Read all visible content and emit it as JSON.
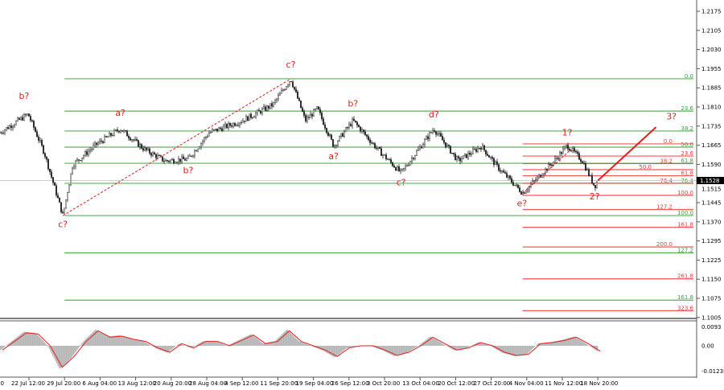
{
  "chart_data": {
    "type": "candlestick",
    "symbol_current_price": "1.1528",
    "y_axis": {
      "range": [
        1.1005,
        1.2175
      ],
      "tick_labels": [
        "1.2175",
        "1.2105",
        "1.2030",
        "1.1955",
        "1.1885",
        "1.1810",
        "1.1735",
        "1.1665",
        "1.1590",
        "1.1515",
        "1.1445",
        "1.1370",
        "1.1295",
        "1.1225",
        "1.1150",
        "1.1075",
        "1.1005"
      ]
    },
    "x_axis": {
      "first_label_partial": "00",
      "tick_labels": [
        "22 Jul 12:00",
        "29 Jul 20:00",
        "6 Aug 04:00",
        "13 Aug 12:00",
        "20 Aug 20:00",
        "28 Aug 04:00",
        "4 Sep 12:00",
        "11 Sep 20:00",
        "19 Sep 04:00",
        "26 Sep 12:00",
        "3 Oct 20:00",
        "13 Oct 04:00",
        "20 Oct 12:00",
        "27 Oct 20:00",
        "4 Nov 04:00",
        "11 Nov 12:00",
        "18 Nov 20:00"
      ]
    },
    "price_swings": [
      {
        "t": "16 Jul 12:00",
        "p": 1.1711
      },
      {
        "t": "22 Jul 08:00",
        "p": 1.1782
      },
      {
        "t": "25 Jul 16:00",
        "p": 1.1634
      },
      {
        "t": "29 Jul 12:00",
        "p": 1.1394
      },
      {
        "t": "31 Jul 12:00",
        "p": 1.1588
      },
      {
        "t": "5 Aug 08:00",
        "p": 1.1665
      },
      {
        "t": "10 Aug 08:00",
        "p": 1.1726
      },
      {
        "t": "15 Aug 04:00",
        "p": 1.1649
      },
      {
        "t": "19 Aug 12:00",
        "p": 1.1603
      },
      {
        "t": "24 Aug 08:00",
        "p": 1.161
      },
      {
        "t": "28 Aug 16:00",
        "p": 1.1711
      },
      {
        "t": "4 Sep 12:00",
        "p": 1.1757
      },
      {
        "t": "10 Sep 20:00",
        "p": 1.1818
      },
      {
        "t": "14 Sep 12:00",
        "p": 1.1917
      },
      {
        "t": "17 Sep 12:00",
        "p": 1.1757
      },
      {
        "t": "20 Sep 00:00",
        "p": 1.1803
      },
      {
        "t": "23 Sep 08:00",
        "p": 1.166
      },
      {
        "t": "27 Sep 08:00",
        "p": 1.1757
      },
      {
        "t": "2 Oct 08:00",
        "p": 1.1649
      },
      {
        "t": "8 Oct 04:00",
        "p": 1.1557
      },
      {
        "t": "16 Oct 00:00",
        "p": 1.1726
      },
      {
        "t": "21 Oct 00:00",
        "p": 1.1603
      },
      {
        "t": "25 Oct 20:00",
        "p": 1.1659
      },
      {
        "t": "29 Oct 04:00",
        "p": 1.1579
      },
      {
        "t": "3 Nov 08:00",
        "p": 1.148
      },
      {
        "t": "9 Nov 20:00",
        "p": 1.1603
      },
      {
        "t": "12 Nov 12:00",
        "p": 1.1662
      },
      {
        "t": "15 Nov 16:00",
        "p": 1.1603
      },
      {
        "t": "18 Nov 04:00",
        "p": 1.1505
      },
      {
        "t": "18 Nov 20:00",
        "p": 1.1528
      }
    ],
    "wave_labels": [
      {
        "text": "b?",
        "t": "21 Jul 12:00",
        "p": 1.184
      },
      {
        "text": "c?",
        "t": "29 Jul 12:00",
        "p": 1.135
      },
      {
        "text": "a?",
        "t": "10 Aug 08:00",
        "p": 1.1775
      },
      {
        "text": "b?",
        "t": "24 Aug 08:00",
        "p": 1.1555
      },
      {
        "text": "c?",
        "t": "14 Sep 12:00",
        "p": 1.196
      },
      {
        "text": "a?",
        "t": "23 Sep 08:00",
        "p": 1.161
      },
      {
        "text": "b?",
        "t": "27 Sep 08:00",
        "p": 1.181
      },
      {
        "text": "c?",
        "t": "8 Oct 04:00",
        "p": 1.151
      },
      {
        "text": "d?",
        "t": "16 Oct 00:00",
        "p": 1.177
      },
      {
        "text": "e?",
        "t": "3 Nov 04:00",
        "p": 1.143
      },
      {
        "text": "1?",
        "t": "12 Nov 12:00",
        "p": 1.17
      },
      {
        "text": "2?",
        "t": "18 Nov 04:00",
        "p": 1.1455
      },
      {
        "text": "3?",
        "t": "4 Dec 00:00",
        "p": 1.1762
      }
    ],
    "trend_lines": [
      {
        "style": "dashed",
        "color": "#e0201f",
        "from": {
          "t": "29 Jul 12:00",
          "p": 1.1394
        },
        "to": {
          "t": "14 Sep 12:00",
          "p": 1.1917
        }
      },
      {
        "style": "dashed",
        "color": "#e0201f",
        "from": {
          "t": "3 Nov 08:00",
          "p": 1.148
        },
        "to": {
          "t": "13 Nov 12:00",
          "p": 1.165
        }
      },
      {
        "style": "solid",
        "color": "#e0201f",
        "from": {
          "t": "18 Nov 20:00",
          "p": 1.1528
        },
        "to": {
          "t": "30 Nov 20:00",
          "p": 1.1732
        }
      }
    ],
    "fibonacci": [
      {
        "color": "#3aa63a",
        "start": "29 Jul 20:00",
        "price_0": 1.1917,
        "price_100": 1.1394,
        "levels": [
          "0.0",
          "23.6",
          "38.2",
          "50.0",
          "61.8",
          "76.4",
          "100.0",
          "127.2",
          "161.8"
        ]
      },
      {
        "color": "#f03c3c",
        "start": "3 Nov 08:00",
        "price_0": 1.1668,
        "price_100": 1.1471,
        "levels": [
          "0.0",
          "23.6",
          "38.2",
          "50.0",
          "61.8",
          "76.4",
          "100.0",
          "127.2",
          "161.8",
          "200.0",
          "261.8",
          "323.6"
        ]
      }
    ],
    "oscillator": {
      "range": [
        -0.01235,
        0.0093
      ],
      "tick_labels": [
        "0.0093",
        "0.00",
        "-0.01235"
      ],
      "histogram_color": "#b4b4b4",
      "signal_color": "#e0201f",
      "values": [
        -0.002,
        0.002,
        0.006,
        0.0055,
        0.0,
        -0.01,
        -0.005,
        0.002,
        0.007,
        0.004,
        0.0045,
        0.003,
        0.002,
        -0.001,
        -0.003,
        0.001,
        -0.001,
        0.002,
        0.002,
        0.0,
        0.0025,
        0.005,
        0.001,
        0.002,
        0.007,
        0.002,
        0.0,
        -0.002,
        -0.005,
        -0.001,
        0.0,
        0.0,
        -0.002,
        -0.0045,
        -0.003,
        0.0,
        0.004,
        0.001,
        -0.002,
        -0.001,
        0.0015,
        0.0,
        -0.003,
        -0.0045,
        -0.004,
        0.001,
        0.0015,
        0.0025,
        0.004,
        0.001,
        -0.0025
      ]
    }
  }
}
